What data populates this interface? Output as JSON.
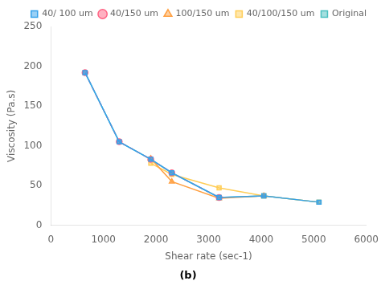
{
  "chart_data": {
    "type": "line",
    "subtitle": "(b)",
    "x_label": "Shear rate (sec-1)",
    "y_label": "Viscosity (Pa.s)",
    "series": [
      {
        "name": "40/ 100 um",
        "marker": "square",
        "line_style": "solid",
        "x": [
          650,
          1300,
          1900,
          2300,
          3200,
          4050,
          5100
        ],
        "values": [
          192,
          105,
          83,
          66,
          35,
          37,
          29
        ]
      },
      {
        "name": "40/150 um",
        "marker": "circle",
        "line_style": "dashed",
        "x": [
          650,
          1300,
          1900,
          2300,
          3200
        ],
        "values": [
          192,
          105,
          83,
          66,
          35
        ]
      },
      {
        "name": "100/150 um",
        "marker": "triangle",
        "line_style": "solid",
        "x": [
          1900,
          2300,
          3200,
          4050
        ],
        "values": [
          84,
          55,
          34,
          37
        ]
      },
      {
        "name": "40/100/150 um",
        "marker": "square",
        "line_style": "solid",
        "x": [
          1900,
          2300,
          3200,
          4050,
          5100
        ],
        "values": [
          78,
          64,
          47,
          37,
          29
        ]
      },
      {
        "name": "Original",
        "marker": "square",
        "line_style": "solid",
        "x": [
          650,
          1300,
          1900,
          2300,
          3200,
          4050,
          5100
        ],
        "values": [
          192,
          105,
          83,
          66,
          35,
          37,
          29
        ]
      }
    ],
    "xlim": [
      0,
      6000
    ],
    "ylim": [
      0,
      250
    ],
    "xticks": [
      0,
      1000,
      2000,
      3000,
      4000,
      5000,
      6000
    ],
    "yticks": [
      0,
      50,
      100,
      150,
      200,
      250
    ],
    "grid": false,
    "legend": "upper right"
  }
}
